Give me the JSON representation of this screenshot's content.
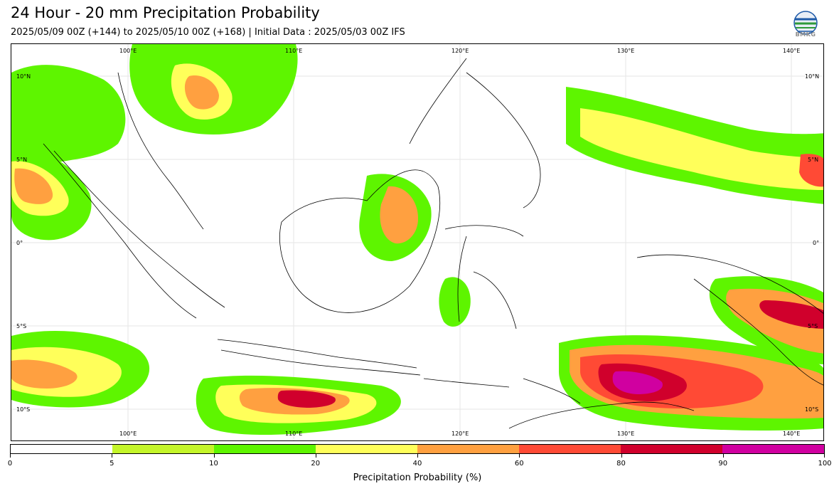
{
  "header": {
    "title": "24 Hour - 20 mm Precipitation Probability",
    "subtitle": "2025/05/09 00Z (+144) to 2025/05/10 00Z (+168) | Initial Data : 2025/05/03 00Z IFS",
    "logo_text": "BMKG"
  },
  "map": {
    "top_lon_labels": [
      "100°E",
      "110°E",
      "120°E",
      "130°E",
      "140°E"
    ],
    "bottom_lon_labels": [
      "100°E",
      "110°E",
      "120°E",
      "130°E",
      "140°E"
    ],
    "left_lat_labels": [
      "10°N",
      "5°N",
      "0°",
      "5°S",
      "10°S"
    ],
    "right_lat_labels": [
      "10°N",
      "5°N",
      "0°",
      "5°S",
      "10°S"
    ]
  },
  "colorbar": {
    "title": "Precipitation Probability (%)",
    "ticks": [
      "0",
      "5",
      "10",
      "20",
      "40",
      "60",
      "80",
      "90",
      "100"
    ],
    "colors": [
      "#ffffff",
      "#c4f52a",
      "#5ef500",
      "#ffff5a",
      "#ffa040",
      "#ff4a35",
      "#d0002c",
      "#d000a0"
    ],
    "icons": {
      "logo": "bmkg-logo-icon"
    }
  }
}
